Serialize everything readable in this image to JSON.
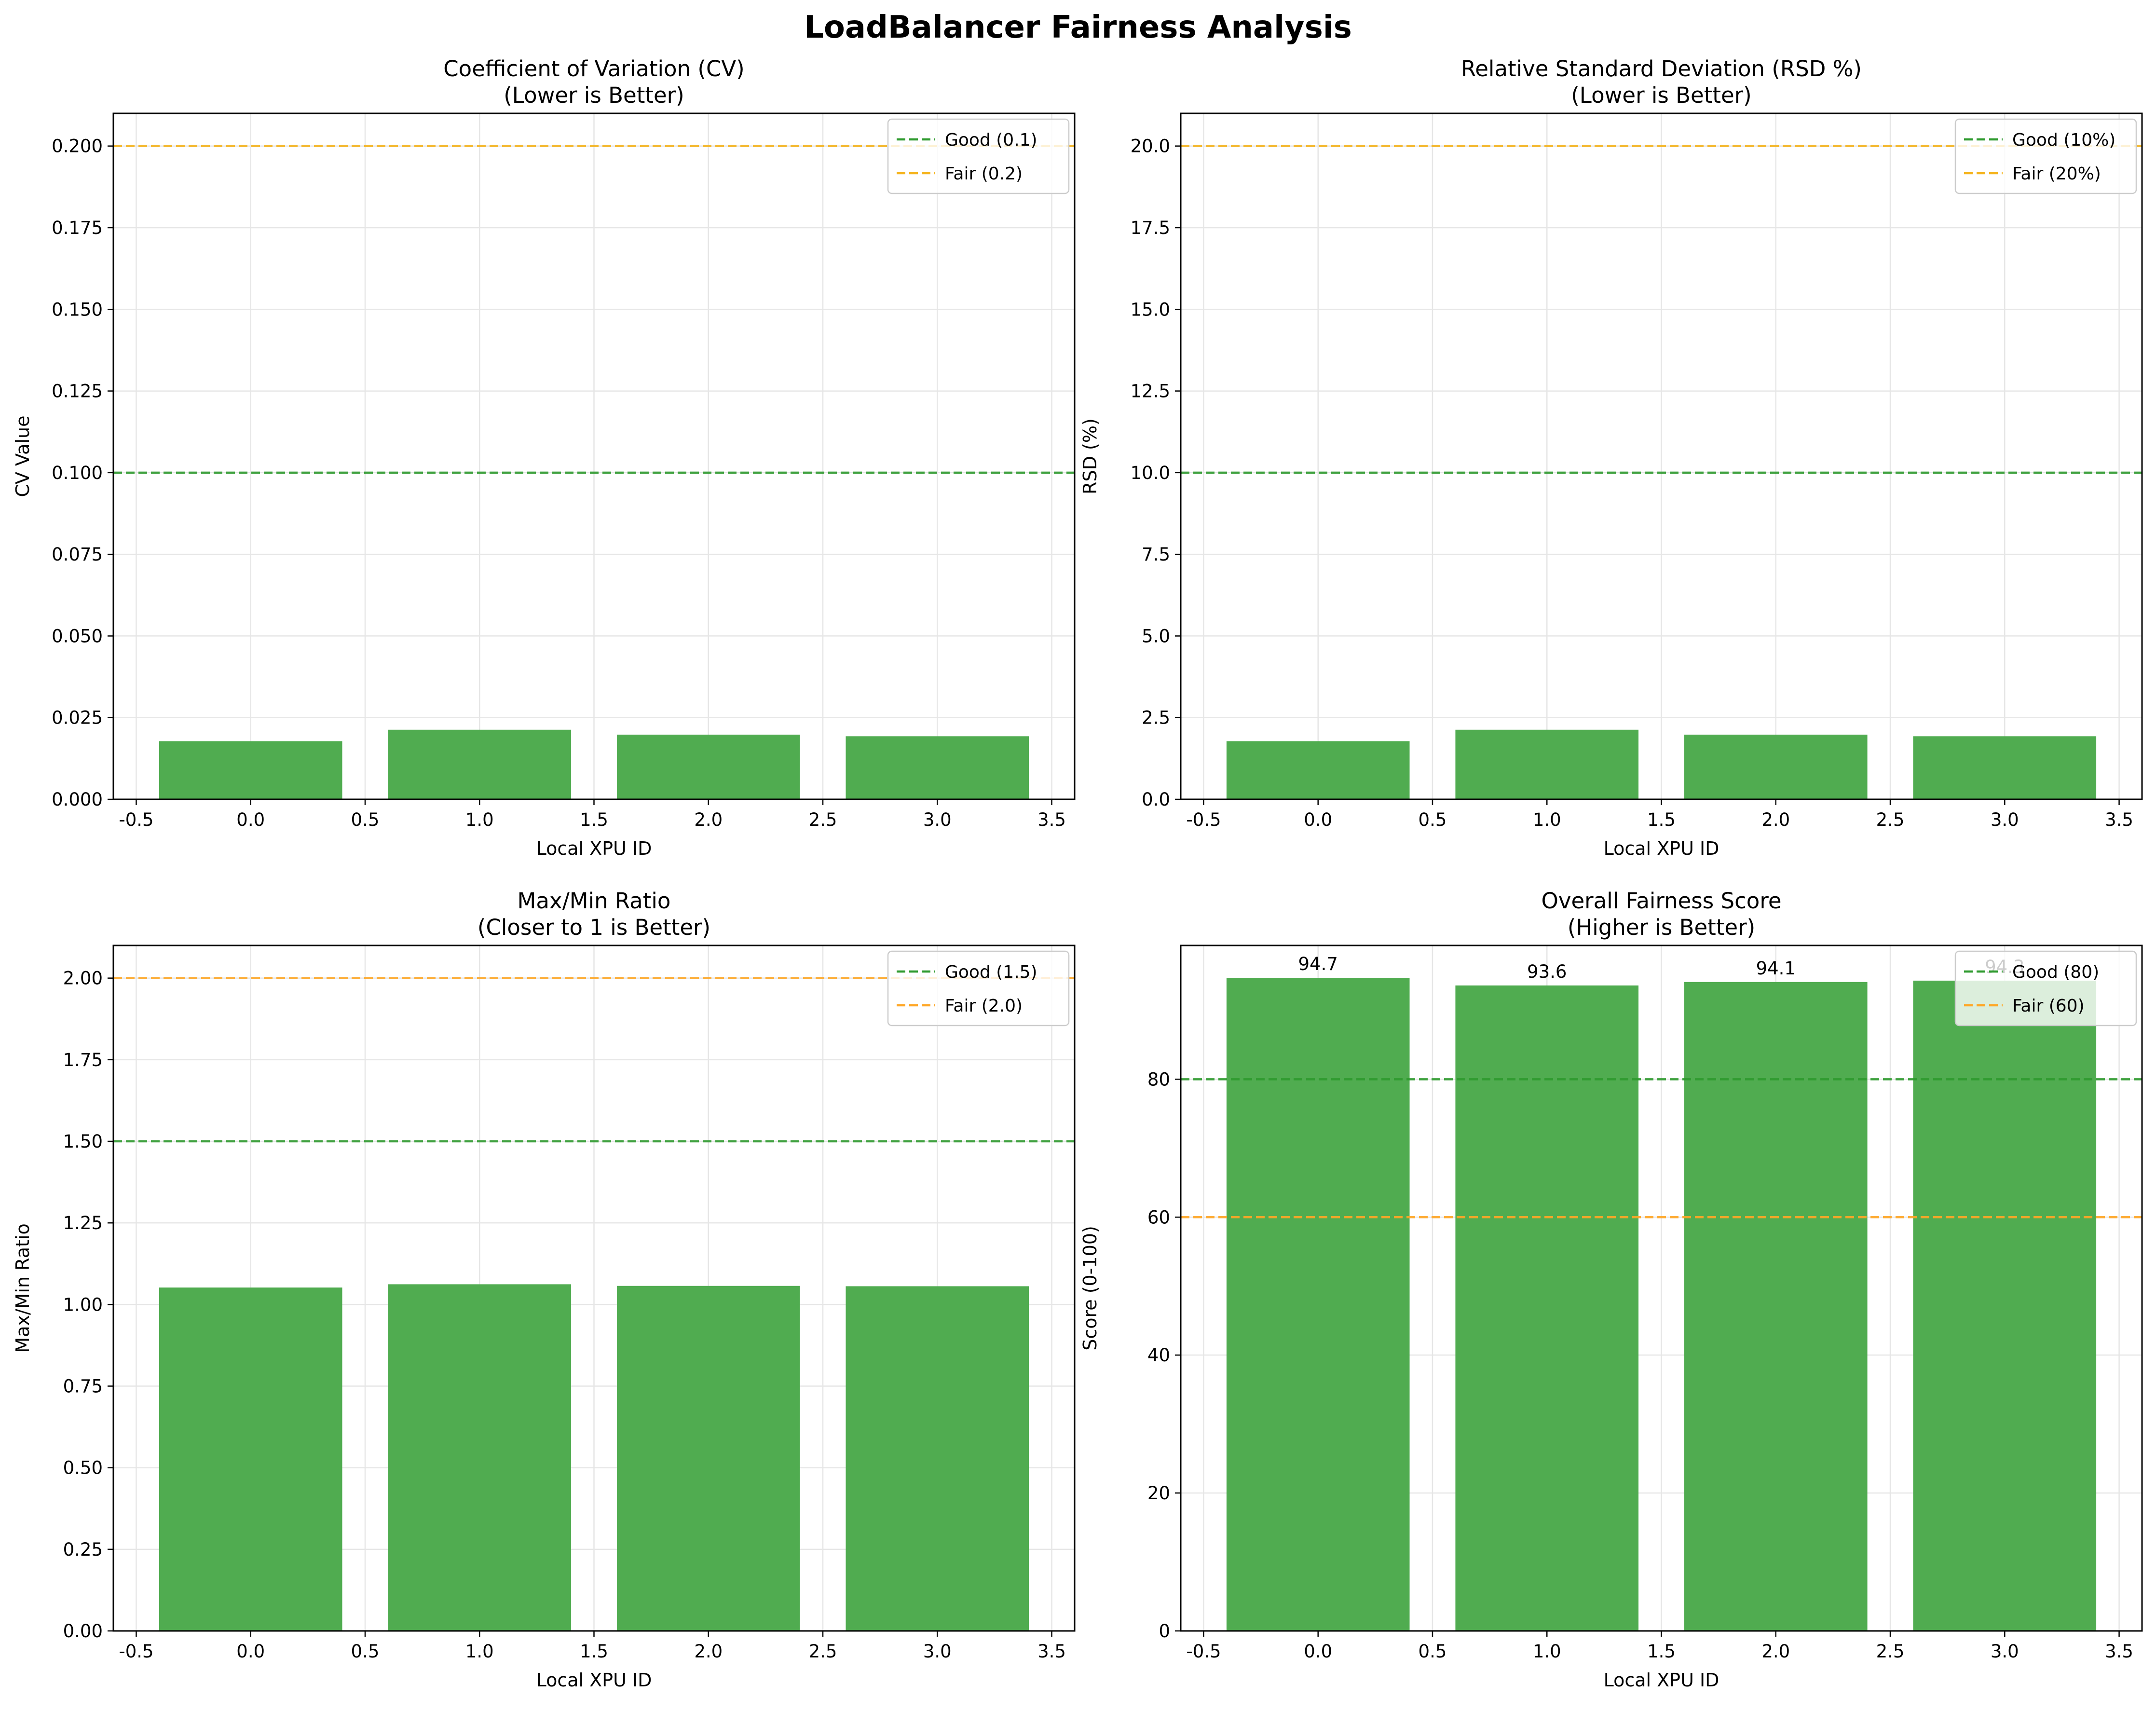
{
  "figure": {
    "title": "LoadBalancer Fairness Analysis"
  },
  "chart_data": [
    {
      "type": "bar",
      "title_line1": "Coefficient of Variation (CV)",
      "title_line2": "(Lower is Better)",
      "xlabel": "Local XPU ID",
      "ylabel": "CV Value",
      "x": [
        0,
        1,
        2,
        3
      ],
      "values": [
        0.0178,
        0.0213,
        0.0198,
        0.0193
      ],
      "xlim": [
        -0.6,
        3.6
      ],
      "ylim": [
        0,
        0.21
      ],
      "xticks": [
        -0.5,
        0.0,
        0.5,
        1.0,
        1.5,
        2.0,
        2.5,
        3.0,
        3.5
      ],
      "xtick_labels": [
        "-0.5",
        "0.0",
        "0.5",
        "1.0",
        "1.5",
        "2.0",
        "2.5",
        "3.0",
        "3.5"
      ],
      "yticks": [
        0,
        0.025,
        0.05,
        0.075,
        0.1,
        0.125,
        0.15,
        0.175,
        0.2
      ],
      "ytick_labels": [
        "0.000",
        "0.025",
        "0.050",
        "0.075",
        "0.100",
        "0.125",
        "0.150",
        "0.175",
        "0.200"
      ],
      "bar_color": "#4caa4c",
      "grid": true,
      "legend_position": "top-right",
      "thresholds": [
        {
          "label": "Good (0.1)",
          "value": 0.1,
          "color": "#2e9a2e"
        },
        {
          "label": "Fair (0.2)",
          "value": 0.2,
          "color": "#f5b41e"
        }
      ],
      "bar_labels": []
    },
    {
      "type": "bar",
      "title_line1": "Relative Standard Deviation (RSD %)",
      "title_line2": "(Lower is Better)",
      "xlabel": "Local XPU ID",
      "ylabel": "RSD (%)",
      "x": [
        0,
        1,
        2,
        3
      ],
      "values": [
        1.78,
        2.13,
        1.98,
        1.93
      ],
      "xlim": [
        -0.6,
        3.6
      ],
      "ylim": [
        0,
        21
      ],
      "xticks": [
        -0.5,
        0.0,
        0.5,
        1.0,
        1.5,
        2.0,
        2.5,
        3.0,
        3.5
      ],
      "xtick_labels": [
        "-0.5",
        "0.0",
        "0.5",
        "1.0",
        "1.5",
        "2.0",
        "2.5",
        "3.0",
        "3.5"
      ],
      "yticks": [
        0,
        2.5,
        5,
        7.5,
        10,
        12.5,
        15,
        17.5,
        20
      ],
      "ytick_labels": [
        "0.0",
        "2.5",
        "5.0",
        "7.5",
        "10.0",
        "12.5",
        "15.0",
        "17.5",
        "20.0"
      ],
      "bar_color": "#4caa4c",
      "grid": true,
      "legend_position": "top-right",
      "thresholds": [
        {
          "label": "Good (10%)",
          "value": 10,
          "color": "#2e9a2e"
        },
        {
          "label": "Fair (20%)",
          "value": 20,
          "color": "#f5b41e"
        }
      ],
      "bar_labels": []
    },
    {
      "type": "bar",
      "title_line1": "Max/Min Ratio",
      "title_line2": "(Closer to 1 is Better)",
      "xlabel": "Local XPU ID",
      "ylabel": "Max/Min Ratio",
      "x": [
        0,
        1,
        2,
        3
      ],
      "values": [
        1.052,
        1.062,
        1.057,
        1.056
      ],
      "xlim": [
        -0.6,
        3.6
      ],
      "ylim": [
        0,
        2.1
      ],
      "xticks": [
        -0.5,
        0.0,
        0.5,
        1.0,
        1.5,
        2.0,
        2.5,
        3.0,
        3.5
      ],
      "xtick_labels": [
        "-0.5",
        "0.0",
        "0.5",
        "1.0",
        "1.5",
        "2.0",
        "2.5",
        "3.0",
        "3.5"
      ],
      "yticks": [
        0,
        0.25,
        0.5,
        0.75,
        1.0,
        1.25,
        1.5,
        1.75,
        2.0
      ],
      "ytick_labels": [
        "0.00",
        "0.25",
        "0.50",
        "0.75",
        "1.00",
        "1.25",
        "1.50",
        "1.75",
        "2.00"
      ],
      "bar_color": "#4caa4c",
      "grid": true,
      "legend_position": "top-right",
      "thresholds": [
        {
          "label": "Good (1.5)",
          "value": 1.5,
          "color": "#2e9a2e"
        },
        {
          "label": "Fair (2.0)",
          "value": 2.0,
          "color": "#ffa726"
        }
      ],
      "bar_labels": []
    },
    {
      "type": "bar",
      "title_line1": "Overall Fairness Score",
      "title_line2": "(Higher is Better)",
      "xlabel": "Local XPU ID",
      "ylabel": "Score (0-100)",
      "x": [
        0,
        1,
        2,
        3
      ],
      "values": [
        94.7,
        93.6,
        94.1,
        94.3
      ],
      "xlim": [
        -0.6,
        3.6
      ],
      "ylim": [
        0,
        99.4
      ],
      "xticks": [
        -0.5,
        0.0,
        0.5,
        1.0,
        1.5,
        2.0,
        2.5,
        3.0,
        3.5
      ],
      "xtick_labels": [
        "-0.5",
        "0.0",
        "0.5",
        "1.0",
        "1.5",
        "2.0",
        "2.5",
        "3.0",
        "3.5"
      ],
      "yticks": [
        0,
        20,
        40,
        60,
        80
      ],
      "ytick_labels": [
        "0",
        "20",
        "40",
        "60",
        "80"
      ],
      "bar_color": "#4caa4c",
      "grid": true,
      "legend_position": "top-right",
      "thresholds": [
        {
          "label": "Good (80)",
          "value": 80,
          "color": "#2e9a2e"
        },
        {
          "label": "Fair (60)",
          "value": 60,
          "color": "#ffa726"
        }
      ],
      "bar_labels": [
        "94.7",
        "93.6",
        "94.1",
        "94.3"
      ]
    }
  ]
}
